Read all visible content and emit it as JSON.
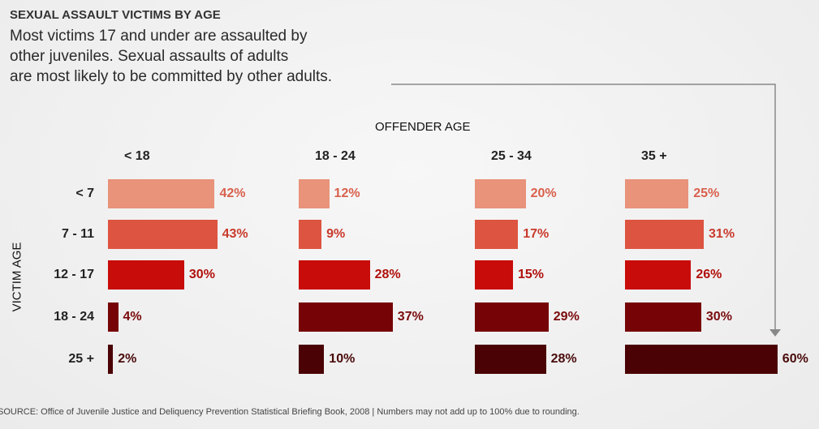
{
  "title": "SEXUAL ASSAULT VICTIMS BY AGE",
  "subtitle_lines": [
    "Most victims 17 and under are assaulted by",
    "other juveniles. Sexual assaults of adults",
    "are most likely to be committed by other adults."
  ],
  "source": "SOURCE: Office of Juvenile Justice and Deliquency Prevention Statistical Briefing Book, 2008 | Numbers may not add up to 100% due to rounding.",
  "chart_data": {
    "type": "bar",
    "orientation": "horizontal",
    "title": "SEXUAL ASSAULT VICTIMS BY AGE",
    "column_axis_label": "OFFENDER AGE",
    "row_axis_label": "VICTIM AGE",
    "columns": [
      "< 18",
      "18 - 24",
      "25 - 34",
      "35 +"
    ],
    "rows": [
      "< 7",
      "7 - 11",
      "12 - 17",
      "18 - 24",
      "25 +"
    ],
    "row_colors": [
      "#e8937a",
      "#dd5440",
      "#c80c0a",
      "#760406",
      "#4a0204"
    ],
    "label_colors": [
      "#d9604c",
      "#c93a2c",
      "#b0100c",
      "#7a0a0c",
      "#4a0a0a"
    ],
    "values": [
      [
        42,
        12,
        20,
        25
      ],
      [
        43,
        9,
        17,
        31
      ],
      [
        30,
        28,
        15,
        26
      ],
      [
        4,
        37,
        29,
        30
      ],
      [
        2,
        10,
        28,
        60
      ]
    ],
    "unit": "%"
  }
}
